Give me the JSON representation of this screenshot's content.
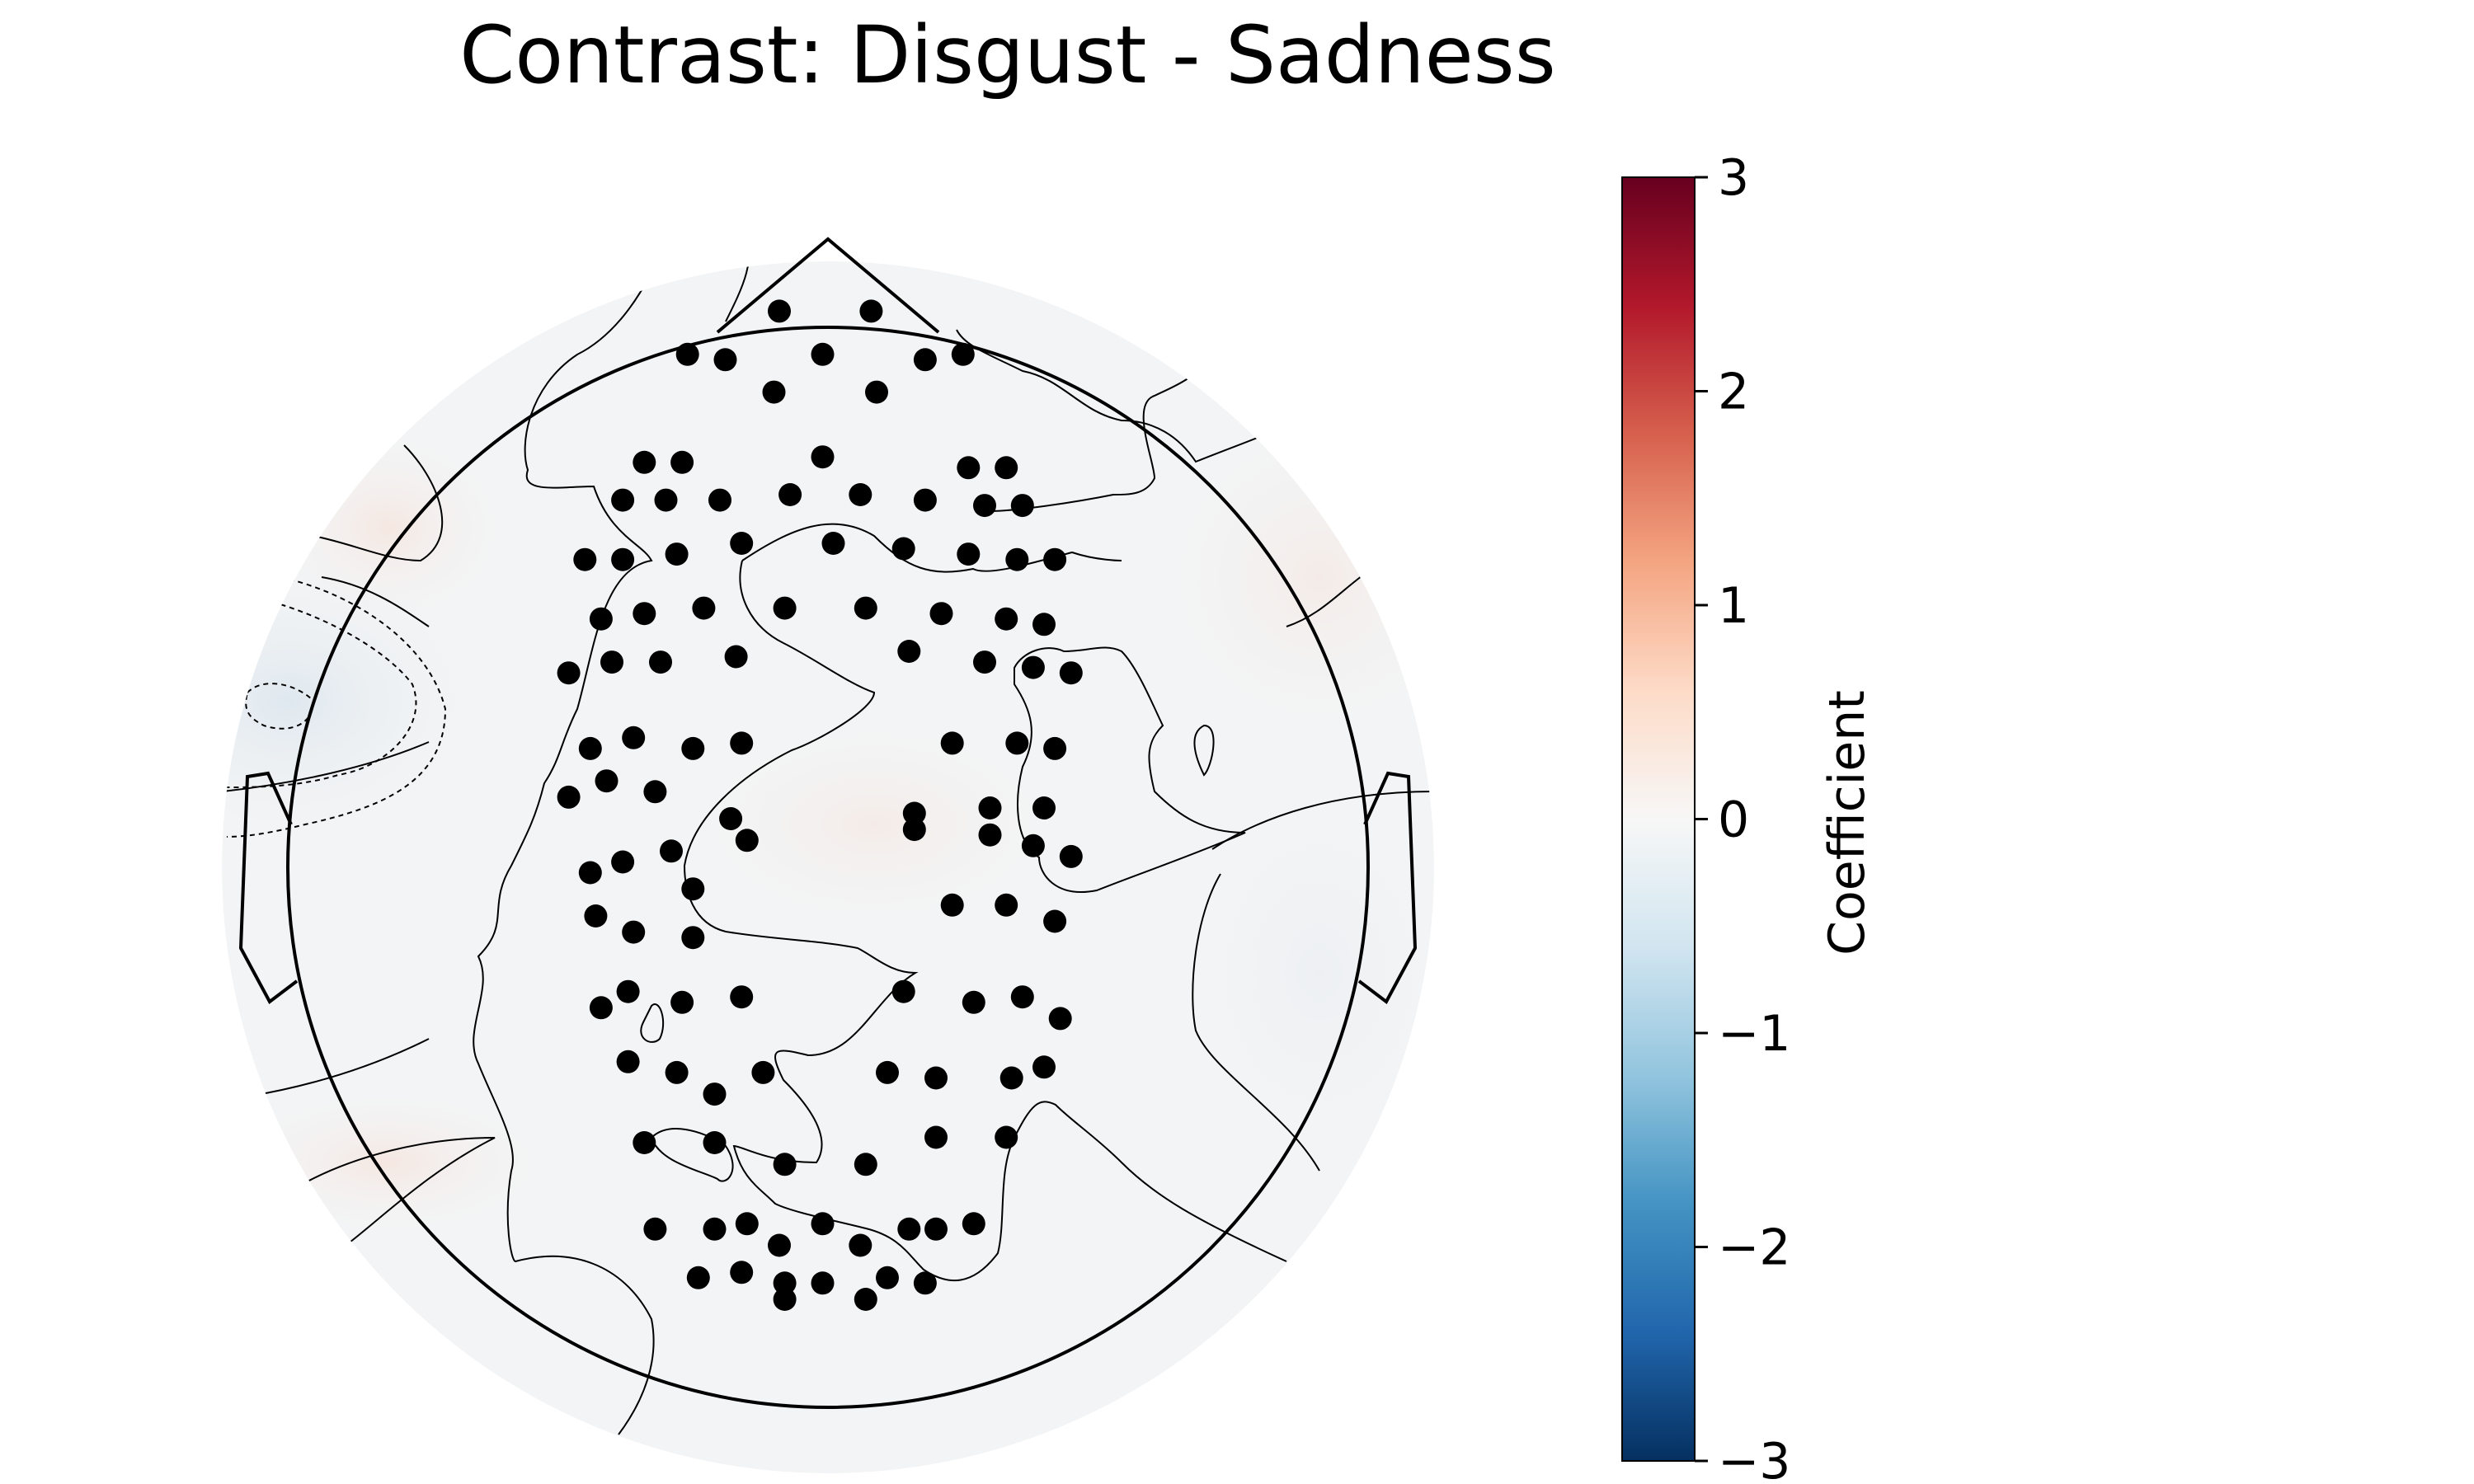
{
  "chart_data": {
    "type": "heatmap",
    "subtype": "eeg-topomap",
    "title": "Contrast: Disgust - Sadness",
    "colorbar": {
      "label": "Coefficient",
      "range": [
        -3,
        3
      ],
      "ticks": [
        3,
        2,
        1,
        0,
        -1,
        -2,
        -3
      ],
      "tick_labels": [
        "3",
        "2",
        "1",
        "0",
        "−1",
        "−2",
        "−3"
      ],
      "colormap": [
        "#67001f",
        "#b2182b",
        "#d6604d",
        "#f4a582",
        "#fddbc7",
        "#f7f7f7",
        "#d1e5f0",
        "#92c5de",
        "#4393c3",
        "#2166ac",
        "#053061"
      ]
    },
    "head_fill": "#f3f4f5",
    "field_blobs": [
      {
        "region": "left-temporal",
        "value": -0.15
      },
      {
        "region": "left-frontal",
        "value": 0.06
      },
      {
        "region": "left-posterior",
        "value": 0.05
      },
      {
        "region": "center",
        "value": 0.02
      },
      {
        "region": "right-frontal",
        "value": 0.03
      },
      {
        "region": "right-temporal",
        "value": -0.04
      }
    ],
    "sensors": [
      [
        -0.09,
        1.03
      ],
      [
        0.08,
        1.03
      ],
      [
        -0.26,
        0.95
      ],
      [
        -0.19,
        0.94
      ],
      [
        -0.01,
        0.95
      ],
      [
        0.18,
        0.94
      ],
      [
        0.25,
        0.95
      ],
      [
        -0.1,
        0.88
      ],
      [
        0.09,
        0.88
      ],
      [
        -0.34,
        0.75
      ],
      [
        -0.27,
        0.75
      ],
      [
        -0.01,
        0.76
      ],
      [
        0.26,
        0.74
      ],
      [
        0.33,
        0.74
      ],
      [
        -0.38,
        0.68
      ],
      [
        -0.3,
        0.68
      ],
      [
        -0.2,
        0.68
      ],
      [
        -0.07,
        0.69
      ],
      [
        0.06,
        0.69
      ],
      [
        0.18,
        0.68
      ],
      [
        0.29,
        0.67
      ],
      [
        0.36,
        0.67
      ],
      [
        -0.45,
        0.57
      ],
      [
        -0.38,
        0.57
      ],
      [
        -0.28,
        0.58
      ],
      [
        -0.16,
        0.6
      ],
      [
        0.01,
        0.6
      ],
      [
        0.14,
        0.59
      ],
      [
        0.26,
        0.58
      ],
      [
        0.35,
        0.57
      ],
      [
        0.42,
        0.57
      ],
      [
        -0.42,
        0.46
      ],
      [
        -0.34,
        0.47
      ],
      [
        -0.23,
        0.48
      ],
      [
        -0.08,
        0.48
      ],
      [
        0.07,
        0.48
      ],
      [
        0.21,
        0.47
      ],
      [
        0.33,
        0.46
      ],
      [
        0.4,
        0.45
      ],
      [
        -0.48,
        0.36
      ],
      [
        -0.4,
        0.38
      ],
      [
        -0.31,
        0.38
      ],
      [
        -0.17,
        0.39
      ],
      [
        0.15,
        0.4
      ],
      [
        0.29,
        0.38
      ],
      [
        0.38,
        0.37
      ],
      [
        0.45,
        0.36
      ],
      [
        -0.44,
        0.22
      ],
      [
        -0.36,
        0.24
      ],
      [
        -0.25,
        0.22
      ],
      [
        -0.16,
        0.23
      ],
      [
        0.23,
        0.23
      ],
      [
        0.35,
        0.23
      ],
      [
        0.42,
        0.22
      ],
      [
        -0.48,
        0.13
      ],
      [
        -0.41,
        0.16
      ],
      [
        -0.32,
        0.14
      ],
      [
        -0.18,
        0.09
      ],
      [
        0.16,
        0.1
      ],
      [
        0.3,
        0.11
      ],
      [
        0.4,
        0.11
      ],
      [
        -0.44,
        -0.01
      ],
      [
        -0.38,
        0.01
      ],
      [
        -0.29,
        0.03
      ],
      [
        -0.15,
        0.05
      ],
      [
        0.16,
        0.07
      ],
      [
        0.3,
        0.06
      ],
      [
        0.38,
        0.04
      ],
      [
        0.45,
        0.02
      ],
      [
        -0.43,
        -0.09
      ],
      [
        -0.36,
        -0.12
      ],
      [
        -0.25,
        -0.13
      ],
      [
        -0.25,
        -0.04
      ],
      [
        0.23,
        -0.07
      ],
      [
        0.33,
        -0.07
      ],
      [
        0.42,
        -0.1
      ],
      [
        -0.42,
        -0.26
      ],
      [
        -0.37,
        -0.23
      ],
      [
        -0.27,
        -0.25
      ],
      [
        -0.16,
        -0.24
      ],
      [
        0.14,
        -0.23
      ],
      [
        0.27,
        -0.25
      ],
      [
        0.36,
        -0.24
      ],
      [
        0.43,
        -0.28
      ],
      [
        -0.37,
        -0.36
      ],
      [
        -0.28,
        -0.38
      ],
      [
        -0.21,
        -0.42
      ],
      [
        -0.12,
        -0.38
      ],
      [
        0.11,
        -0.38
      ],
      [
        0.2,
        -0.39
      ],
      [
        0.34,
        -0.39
      ],
      [
        0.4,
        -0.37
      ],
      [
        -0.34,
        -0.51
      ],
      [
        -0.21,
        -0.51
      ],
      [
        -0.08,
        -0.55
      ],
      [
        0.07,
        -0.55
      ],
      [
        0.2,
        -0.5
      ],
      [
        0.33,
        -0.5
      ],
      [
        -0.32,
        -0.67
      ],
      [
        -0.21,
        -0.67
      ],
      [
        -0.15,
        -0.66
      ],
      [
        -0.09,
        -0.7
      ],
      [
        -0.01,
        -0.66
      ],
      [
        0.06,
        -0.7
      ],
      [
        0.15,
        -0.67
      ],
      [
        0.2,
        -0.67
      ],
      [
        0.27,
        -0.66
      ],
      [
        -0.24,
        -0.76
      ],
      [
        -0.16,
        -0.75
      ],
      [
        -0.08,
        -0.77
      ],
      [
        -0.01,
        -0.77
      ],
      [
        0.11,
        -0.76
      ],
      [
        0.18,
        -0.77
      ],
      [
        -0.08,
        -0.8
      ],
      [
        0.07,
        -0.8
      ]
    ]
  }
}
